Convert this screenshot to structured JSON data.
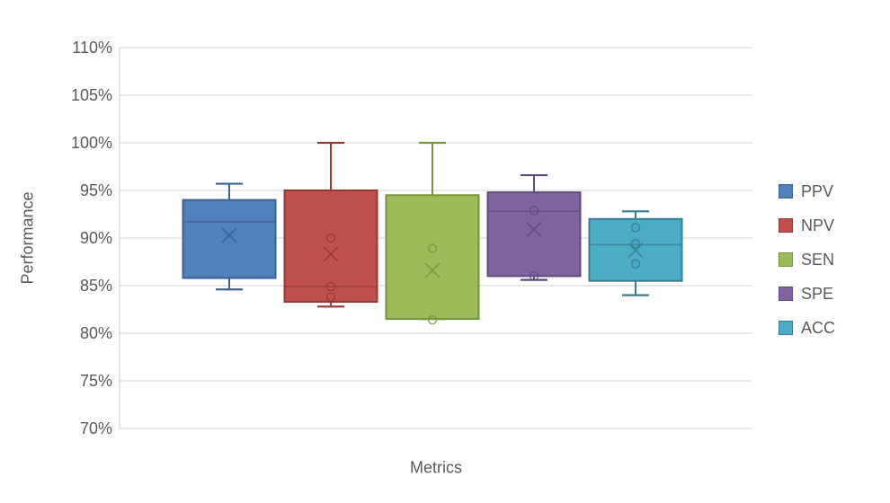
{
  "chart_data": {
    "type": "boxplot",
    "title": "",
    "xlabel": "Metrics",
    "ylabel": "Performance",
    "ylim": [
      70,
      110
    ],
    "ytick_step": 5,
    "ytick_suffix": "%",
    "grid": true,
    "legend_position": "right",
    "colors": {
      "gridline": "#D9D9D9",
      "tick_text": "#595959",
      "axis_title_text": "#595959",
      "background": "#FFFFFF"
    },
    "series": [
      {
        "name": "PPV",
        "fill": "#4F81BD",
        "border": "#3B6292",
        "stats": {
          "whisker_low": 84.6,
          "q1": 85.8,
          "median": 91.7,
          "q3": 94.0,
          "whisker_high": 95.7,
          "mean": 90.3
        },
        "points": []
      },
      {
        "name": "NPV",
        "fill": "#C0504D",
        "border": "#953734",
        "stats": {
          "whisker_low": 82.8,
          "q1": 83.3,
          "median": 84.9,
          "q3": 95.0,
          "whisker_high": 100.0,
          "mean": 88.3
        },
        "points": [
          90.0,
          84.9,
          83.8
        ]
      },
      {
        "name": "SEN",
        "fill": "#9BBB59",
        "border": "#77933C",
        "stats": {
          "whisker_low": 81.5,
          "q1": 81.5,
          "median": 81.5,
          "q3": 94.5,
          "whisker_high": 100.0,
          "mean": 86.6
        },
        "points": [
          88.9,
          81.4
        ]
      },
      {
        "name": "SPE",
        "fill": "#8064A2",
        "border": "#604A7B",
        "stats": {
          "whisker_low": 85.6,
          "q1": 86.0,
          "median": 92.8,
          "q3": 94.8,
          "whisker_high": 96.6,
          "mean": 90.9
        },
        "points": [
          92.9,
          86.0
        ]
      },
      {
        "name": "ACC",
        "fill": "#4BACC6",
        "border": "#357D91",
        "stats": {
          "whisker_low": 84.0,
          "q1": 85.5,
          "median": 89.3,
          "q3": 92.0,
          "whisker_high": 92.8,
          "mean": 88.7
        },
        "points": [
          91.1,
          89.4,
          87.3
        ]
      }
    ]
  }
}
